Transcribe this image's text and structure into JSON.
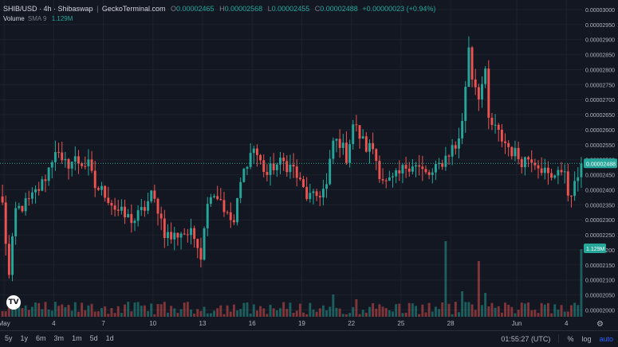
{
  "legend": {
    "symbol": "SHIB/USD · 4h · Shibaswap",
    "source": "GeckoTerminal.com",
    "o_label": "O",
    "o_value": "0.00002465",
    "h_label": "H",
    "h_value": "0.00002568",
    "l_label": "L",
    "l_value": "0.00002455",
    "c_label": "C",
    "c_value": "0.00002488",
    "change": "+0.00000023 (+0.94%)"
  },
  "volume_legend": {
    "label": "Volume",
    "sma": "SMA 9",
    "value": "1.129M"
  },
  "time_ranges": [
    "5y",
    "1y",
    "6m",
    "3m",
    "1m",
    "5d",
    "1d"
  ],
  "bottom_right": {
    "time": "01:55:27 (UTC)",
    "percent": "%",
    "log": "log",
    "auto": "auto"
  },
  "logo_text": "TV",
  "colors": {
    "up": "#26a69a",
    "down": "#ef5350",
    "background": "#131722",
    "grid": "#1e222d"
  },
  "chart_data": {
    "type": "candlestick",
    "price_axis": {
      "ticks": [
        "0.00003000",
        "0.00002950",
        "0.00002900",
        "0.00002850",
        "0.00002800",
        "0.00002750",
        "0.00002700",
        "0.00002650",
        "0.00002600",
        "0.00002550",
        "0.00002500",
        "0.00002450",
        "0.00002400",
        "0.00002350",
        "0.00002300",
        "0.00002250",
        "0.00002200",
        "0.00002150",
        "0.00002100",
        "0.00002050",
        "0.00002000"
      ],
      "range": [
        1.98e-05,
        3e-05
      ],
      "last_price_label": "0.00002488",
      "last_price": 2.488e-05,
      "volume_label": "1.129M"
    },
    "time_axis": {
      "labels": [
        "May",
        "4",
        "7",
        "10",
        "13",
        "16",
        "19",
        "22",
        "25",
        "28",
        "Jun",
        "4"
      ],
      "positions": [
        0.5,
        15.5,
        30.5,
        45.5,
        60.5,
        75.5,
        90.5,
        105.5,
        120.5,
        135.5,
        155.5,
        170.5
      ]
    },
    "bar_count": 176,
    "keypoints": [
      [
        0,
        2.35e-05
      ],
      [
        2,
        2.11e-05
      ],
      [
        4,
        2.33e-05
      ],
      [
        8,
        2.36e-05
      ],
      [
        12,
        2.42e-05
      ],
      [
        14,
        2.47e-05
      ],
      [
        16,
        2.54e-05
      ],
      [
        18,
        2.48e-05
      ],
      [
        22,
        2.5e-05
      ],
      [
        26,
        2.48e-05
      ],
      [
        28,
        2.41e-05
      ],
      [
        31,
        2.39e-05
      ],
      [
        34,
        2.34e-05
      ],
      [
        37,
        2.31e-05
      ],
      [
        40,
        2.3e-05
      ],
      [
        43,
        2.34e-05
      ],
      [
        45,
        2.38e-05
      ],
      [
        47,
        2.34e-05
      ],
      [
        49,
        2.26e-05
      ],
      [
        51,
        2.24e-05
      ],
      [
        54,
        2.26e-05
      ],
      [
        57,
        2.25e-05
      ],
      [
        59,
        2.23e-05
      ],
      [
        60,
        2.18e-05
      ],
      [
        61,
        2.29e-05
      ],
      [
        63,
        2.4e-05
      ],
      [
        66,
        2.37e-05
      ],
      [
        68,
        2.31e-05
      ],
      [
        70,
        2.29e-05
      ],
      [
        72,
        2.42e-05
      ],
      [
        74,
        2.5e-05
      ],
      [
        76,
        2.54e-05
      ],
      [
        78,
        2.49e-05
      ],
      [
        80,
        2.45e-05
      ],
      [
        82,
        2.48e-05
      ],
      [
        85,
        2.49e-05
      ],
      [
        88,
        2.47e-05
      ],
      [
        90,
        2.42e-05
      ],
      [
        92,
        2.38e-05
      ],
      [
        94,
        2.37e-05
      ],
      [
        96,
        2.39e-05
      ],
      [
        98,
        2.41e-05
      ],
      [
        100,
        2.56e-05
      ],
      [
        102,
        2.56e-05
      ],
      [
        104,
        2.51e-05
      ],
      [
        106,
        2.62e-05
      ],
      [
        108,
        2.58e-05
      ],
      [
        110,
        2.54e-05
      ],
      [
        112,
        2.54e-05
      ],
      [
        114,
        2.46e-05
      ],
      [
        116,
        2.42e-05
      ],
      [
        118,
        2.43e-05
      ],
      [
        120,
        2.45e-05
      ],
      [
        122,
        2.48e-05
      ],
      [
        124,
        2.49e-05
      ],
      [
        126,
        2.47e-05
      ],
      [
        128,
        2.45e-05
      ],
      [
        130,
        2.45e-05
      ],
      [
        132,
        2.48e-05
      ],
      [
        134,
        2.51e-05
      ],
      [
        136,
        2.54e-05
      ],
      [
        137,
        2.54e-05
      ],
      [
        139,
        2.62e-05
      ],
      [
        141,
        2.88e-05
      ],
      [
        142,
        2.78e-05
      ],
      [
        144,
        2.72e-05
      ],
      [
        146,
        2.78e-05
      ],
      [
        147,
        2.63e-05
      ],
      [
        149,
        2.6e-05
      ],
      [
        151,
        2.57e-05
      ],
      [
        154,
        2.53e-05
      ],
      [
        157,
        2.5e-05
      ],
      [
        160,
        2.51e-05
      ],
      [
        162,
        2.49e-05
      ],
      [
        164,
        2.46e-05
      ],
      [
        166,
        2.43e-05
      ],
      [
        168,
        2.48e-05
      ],
      [
        170,
        2.44e-05
      ],
      [
        171,
        2.39e-05
      ],
      [
        173,
        2.41e-05
      ],
      [
        175,
        2.488e-05
      ]
    ],
    "volume_spikes": [
      [
        134,
        0.95
      ],
      [
        144,
        0.7
      ],
      [
        175,
        0.85
      ],
      [
        100,
        0.28
      ],
      [
        139,
        0.32
      ],
      [
        146,
        0.3
      ],
      [
        107,
        0.22
      ]
    ]
  }
}
